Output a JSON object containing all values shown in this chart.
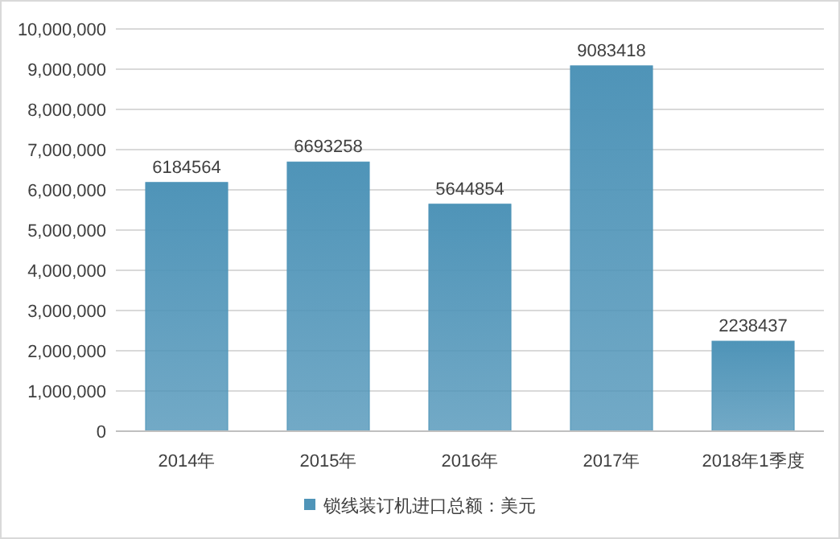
{
  "chart_data": {
    "type": "bar",
    "categories": [
      "2014年",
      "2015年",
      "2016年",
      "2017年",
      "2018年1季度"
    ],
    "series": [
      {
        "name": "锁线装订机进口总额：美元",
        "color": "#4f94b8",
        "values": [
          6184564,
          6693258,
          5644854,
          9083418,
          2238437
        ]
      }
    ],
    "ylim": [
      0,
      10000000
    ],
    "yticks": [
      0,
      {
        "value": 1000000,
        "label": "1,000,000"
      },
      {
        "value": 2000000,
        "label": "2,000,000"
      },
      {
        "value": 3000000,
        "label": "3,000,000"
      },
      {
        "value": 4000000,
        "label": "4,000,000"
      },
      {
        "value": 5000000,
        "label": "5,000,000"
      },
      {
        "value": 6000000,
        "label": "6,000,000"
      },
      {
        "value": 7000000,
        "label": "7,000,000"
      },
      {
        "value": 8000000,
        "label": "8,000,000"
      },
      {
        "value": 9000000,
        "label": "9,000,000"
      },
      {
        "value": 10000000,
        "label": "10,000,000"
      }
    ],
    "grid": "y",
    "legend": "bottom",
    "data_labels": true
  }
}
